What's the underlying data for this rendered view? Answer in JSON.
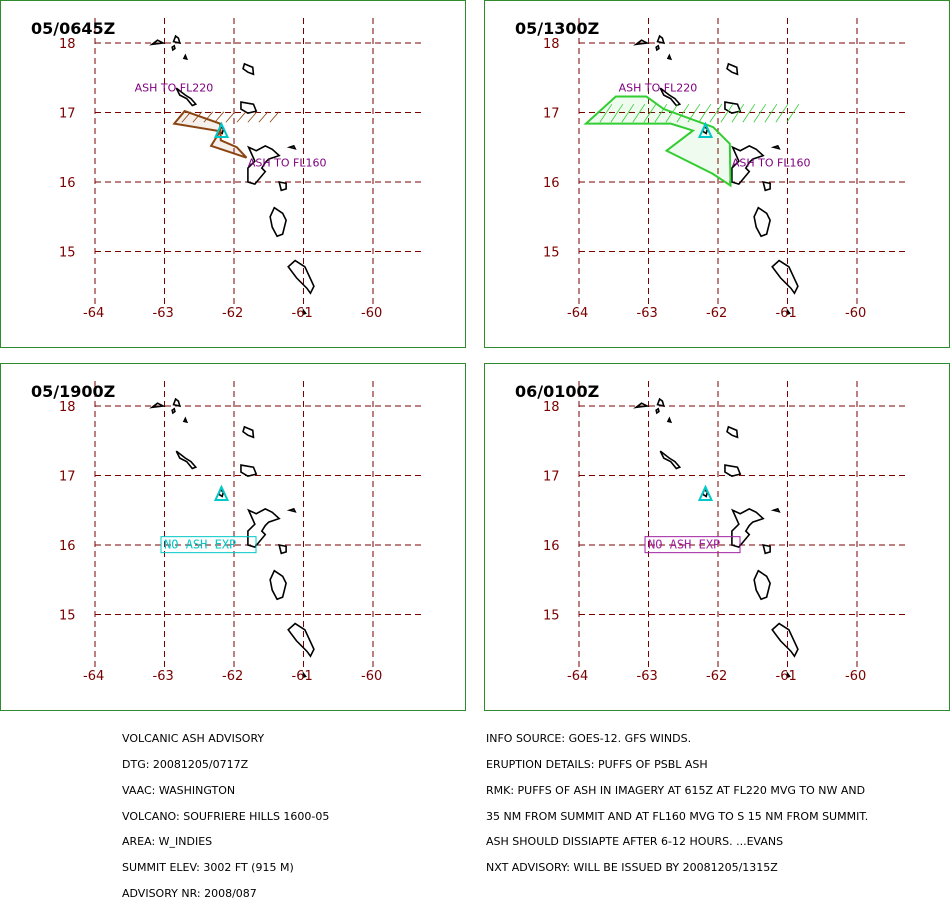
{
  "panels": [
    {
      "time": "05/0645Z",
      "ash": "brown",
      "ash_labels": [
        "ASH TO FL220",
        "ASH TO FL160"
      ],
      "no_ash": null
    },
    {
      "time": "05/1300Z",
      "ash": "green",
      "ash_labels": [
        "ASH TO FL220",
        "ASH TO FL160"
      ],
      "no_ash": null
    },
    {
      "time": "05/1900Z",
      "ash": null,
      "ash_labels": [],
      "no_ash": {
        "text": "NO ASH EXP",
        "color": "#00c8c8"
      }
    },
    {
      "time": "06/0100Z",
      "ash": null,
      "ash_labels": [],
      "no_ash": {
        "text": "NO ASH EXP",
        "color": "#a020a0"
      }
    }
  ],
  "lat_labels": [
    "18",
    "17",
    "16",
    "15"
  ],
  "lon_labels": [
    "-64",
    "-63",
    "-62",
    "-61",
    "-60"
  ],
  "colors": {
    "grid": "#7a0000",
    "frame": "#2e8b2e",
    "volcano": "#00c8c8",
    "ash_brown": "#8b4513",
    "ash_green": "#32cd32",
    "label": "#800080"
  },
  "advisory_left": [
    "VOLCANIC ASH ADVISORY",
    "DTG: 20081205/0717Z",
    "VAAC: WASHINGTON",
    "VOLCANO: SOUFRIERE HILLS 1600-05",
    "AREA: W_INDIES",
    "SUMMIT ELEV: 3002 FT (915 M)",
    "ADVISORY NR: 2008/087"
  ],
  "advisory_right": [
    "INFO SOURCE: GOES-12. GFS WINDS.",
    "ERUPTION DETAILS: PUFFS OF PSBL ASH",
    "RMK: PUFFS OF ASH IN IMAGERY AT 615Z AT FL220 MVG TO NW AND",
    "35 NM FROM SUMMIT AND AT FL160 MVG TO S 15 NM FROM SUMMIT.",
    "ASH SHOULD DISSIAPTE AFTER 6-12 HOURS. ...EVANS",
    "NXT ADVISORY: WILL BE ISSUED BY 20081205/1315Z"
  ]
}
